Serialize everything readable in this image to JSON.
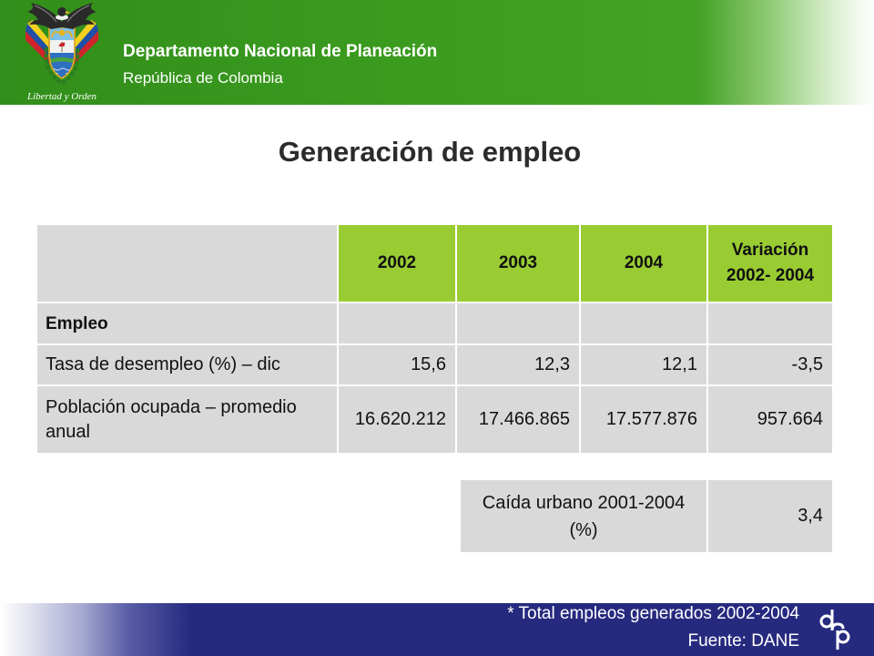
{
  "header": {
    "org_name": "Departamento Nacional de Planeación",
    "org_subtitle": "República de Colombia",
    "logo_motto": "Libertad y Orden",
    "logo_icon": "colombia-coat-of-arms-icon"
  },
  "title": "Generación de empleo",
  "table": {
    "years": [
      "2002",
      "2003",
      "2004"
    ],
    "variation_header": "Variación 2002- 2004",
    "section_label": "Empleo",
    "rows": [
      {
        "label": "Tasa de desempleo (%) – dic",
        "values": [
          "15,6",
          "12,3",
          "12,1",
          "-3,5"
        ]
      },
      {
        "label": "Población ocupada – promedio anual",
        "values": [
          "16.620.212",
          "17.466.865",
          "17.577.876",
          "957.664"
        ]
      }
    ]
  },
  "summary": {
    "label": "Caída urbano 2001-2004 (%)",
    "value": "3,4"
  },
  "footer": {
    "note": "* Total empleos generados 2002-2004",
    "source": "Fuente: DANE",
    "logo_text": "dnp",
    "logo_icon": "dnp-logo-icon"
  },
  "colors": {
    "header_green": "#3b9b1f",
    "table_header_green": "#99cc33",
    "cell_gray": "#d9d9d9",
    "footer_navy": "#262a7f",
    "title_text": "#2b2b2b"
  }
}
